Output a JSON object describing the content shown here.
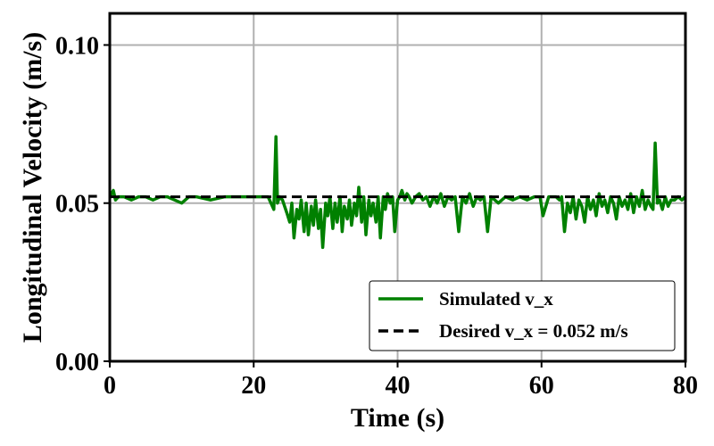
{
  "chart_data": {
    "type": "line",
    "title": "",
    "xlabel": "Time (s)",
    "ylabel": "Longitudinal Velocity (m/s)",
    "xlim": [
      0,
      80
    ],
    "ylim": [
      0,
      0.11
    ],
    "xticks": [
      0,
      20,
      40,
      60,
      80
    ],
    "xtick_labels": [
      "0",
      "20",
      "40",
      "60",
      "80"
    ],
    "yticks": [
      0.0,
      0.05,
      0.1
    ],
    "ytick_labels": [
      "0.00",
      "0.05",
      "0.10"
    ],
    "grid": true,
    "legend_position": "lower-right",
    "series": [
      {
        "name": "Simulated v_x",
        "color": "#008000",
        "style": "solid",
        "x": [
          0,
          0.5,
          0.8,
          1.2,
          2,
          3,
          4,
          5,
          6,
          7,
          8,
          9,
          10,
          11,
          12,
          14,
          16,
          18,
          20,
          22,
          22.8,
          23.1,
          23.3,
          23.6,
          24,
          24.3,
          24.6,
          25,
          25.3,
          25.6,
          26,
          26.3,
          26.6,
          27,
          27.3,
          27.6,
          28,
          28.3,
          28.6,
          29,
          29.3,
          29.6,
          30,
          30.3,
          30.6,
          31,
          31.3,
          31.6,
          32,
          32.3,
          32.6,
          33,
          33.3,
          33.6,
          34,
          34.3,
          34.6,
          35,
          35.3,
          35.6,
          36,
          36.3,
          36.6,
          37,
          37.3,
          37.6,
          38,
          38.3,
          38.6,
          39,
          39.3,
          39.6,
          40,
          40.3,
          40.6,
          41,
          41.3,
          41.6,
          42,
          42.5,
          43,
          43.5,
          44,
          44.5,
          45,
          45.5,
          46,
          46.5,
          47,
          47.5,
          48,
          48.5,
          49,
          49.5,
          50,
          50.5,
          51,
          51.5,
          52,
          52.5,
          53,
          54,
          55,
          56,
          57,
          58,
          59,
          59.8,
          60.2,
          61,
          62,
          62.5,
          62.8,
          63.2,
          63.6,
          64,
          64.4,
          64.8,
          65.2,
          65.6,
          66,
          66.4,
          66.8,
          67.2,
          67.6,
          68,
          68.4,
          68.8,
          69.2,
          69.6,
          70,
          70.4,
          70.8,
          71.2,
          71.6,
          72,
          72.4,
          72.8,
          73.2,
          73.6,
          74,
          74.4,
          74.8,
          75.2,
          75.5,
          75.8,
          76.1,
          76.4,
          76.8,
          77.2,
          77.6,
          78,
          78.5,
          79,
          79.5,
          80
        ],
        "y": [
          0.052,
          0.054,
          0.051,
          0.052,
          0.052,
          0.051,
          0.052,
          0.052,
          0.051,
          0.052,
          0.052,
          0.051,
          0.05,
          0.052,
          0.052,
          0.051,
          0.052,
          0.052,
          0.052,
          0.052,
          0.048,
          0.071,
          0.05,
          0.052,
          0.051,
          0.049,
          0.047,
          0.044,
          0.05,
          0.039,
          0.048,
          0.045,
          0.051,
          0.041,
          0.05,
          0.04,
          0.049,
          0.043,
          0.051,
          0.042,
          0.048,
          0.036,
          0.05,
          0.046,
          0.052,
          0.042,
          0.05,
          0.044,
          0.052,
          0.041,
          0.049,
          0.045,
          0.051,
          0.043,
          0.05,
          0.046,
          0.055,
          0.044,
          0.052,
          0.04,
          0.051,
          0.046,
          0.05,
          0.044,
          0.052,
          0.039,
          0.052,
          0.048,
          0.053,
          0.05,
          0.052,
          0.041,
          0.051,
          0.052,
          0.054,
          0.051,
          0.053,
          0.052,
          0.05,
          0.052,
          0.053,
          0.051,
          0.052,
          0.049,
          0.052,
          0.05,
          0.053,
          0.049,
          0.052,
          0.051,
          0.052,
          0.041,
          0.052,
          0.05,
          0.053,
          0.049,
          0.052,
          0.051,
          0.052,
          0.041,
          0.052,
          0.05,
          0.052,
          0.051,
          0.052,
          0.051,
          0.052,
          0.052,
          0.046,
          0.052,
          0.052,
          0.051,
          0.052,
          0.041,
          0.05,
          0.047,
          0.052,
          0.045,
          0.051,
          0.049,
          0.044,
          0.052,
          0.048,
          0.051,
          0.046,
          0.053,
          0.049,
          0.051,
          0.047,
          0.052,
          0.05,
          0.045,
          0.052,
          0.049,
          0.051,
          0.048,
          0.053,
          0.047,
          0.052,
          0.049,
          0.054,
          0.048,
          0.051,
          0.049,
          0.048,
          0.069,
          0.05,
          0.051,
          0.048,
          0.052,
          0.049,
          0.051,
          0.051,
          0.052,
          0.051,
          0.052
        ]
      },
      {
        "name": "Desired v_x = 0.052 m/s",
        "color": "#000000",
        "style": "dashed",
        "x": [
          0,
          80
        ],
        "y": [
          0.052,
          0.052
        ]
      }
    ]
  }
}
